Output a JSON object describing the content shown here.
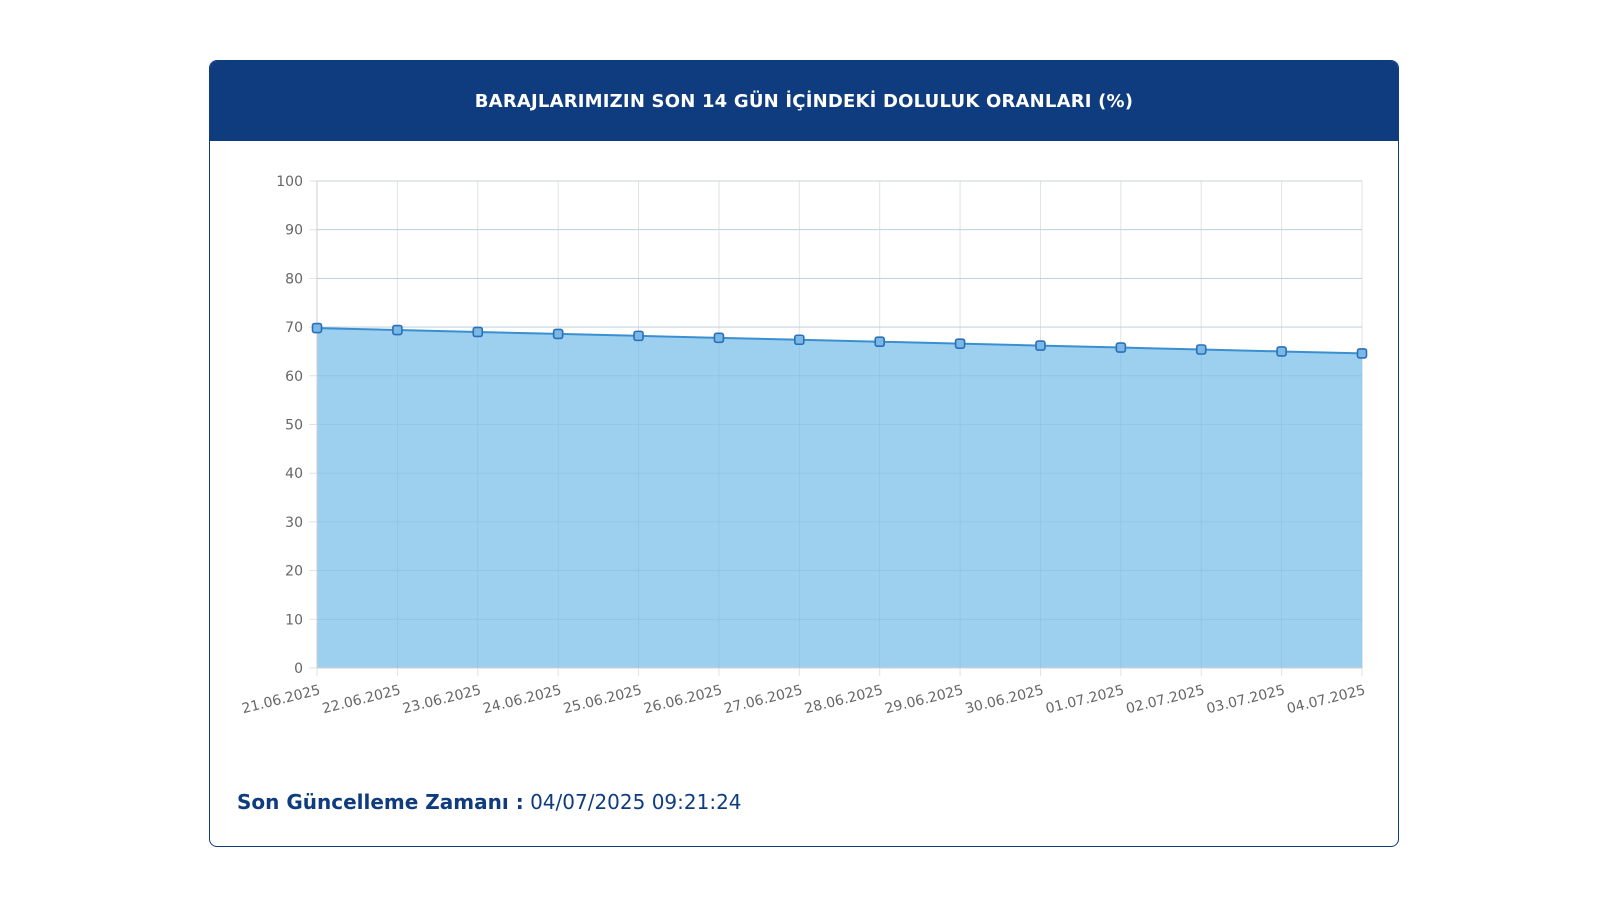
{
  "header": {
    "title": "BARAJLARIMIZIN SON 14 GÜN İÇİNDEKİ DOLULUK ORANLARI (%)"
  },
  "footer": {
    "label": "Son Güncelleme Zamanı :",
    "value": "04/07/2025 09:21:24"
  },
  "colors": {
    "header_bg": "#0f3c7e",
    "area_fill": "#9dd0ee",
    "line": "#3a8fd0",
    "point": "#2a6fb8"
  },
  "chart_data": {
    "type": "area",
    "title": "BARAJLARIMIZIN SON 14 GÜN İÇİNDEKİ DOLULUK ORANLARI (%)",
    "categories": [
      "21.06.2025",
      "22.06.2025",
      "23.06.2025",
      "24.06.2025",
      "25.06.2025",
      "26.06.2025",
      "27.06.2025",
      "28.06.2025",
      "29.06.2025",
      "30.06.2025",
      "01.07.2025",
      "02.07.2025",
      "03.07.2025",
      "04.07.2025"
    ],
    "values": [
      69.8,
      69.4,
      69.0,
      68.6,
      68.2,
      67.8,
      67.4,
      67.0,
      66.6,
      66.2,
      65.8,
      65.4,
      65.0,
      64.6
    ],
    "ylim": [
      0,
      100
    ],
    "yticks": [
      0,
      10,
      20,
      30,
      40,
      50,
      60,
      70,
      80,
      90,
      100
    ],
    "xlabel": "",
    "ylabel": "",
    "grid": true,
    "legend": "none"
  }
}
